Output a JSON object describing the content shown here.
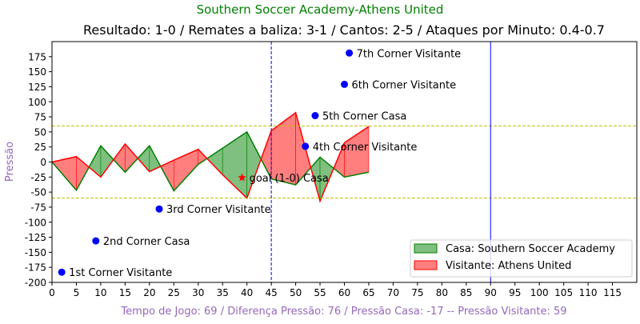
{
  "chart_data": {
    "type": "area",
    "title": "Southern Soccer Academy-Athens United",
    "subtitle": "Resultado: 1-0 / Remates a baliza: 3-1 / Cantos: 2-5 / Ataques por Minuto: 0.4-0.7",
    "xlabel": "Tempo de Jogo: 69 / Diferença Pressão: 76 / Pressão Casa: -17 -- Pressão Visitante: 59",
    "ylabel": "Pressão",
    "xlim": [
      0,
      120
    ],
    "ylim": [
      -200,
      200
    ],
    "xticks": [
      0,
      5,
      10,
      15,
      20,
      25,
      30,
      35,
      40,
      45,
      50,
      55,
      60,
      65,
      70,
      75,
      80,
      85,
      90,
      95,
      100,
      105,
      110,
      115
    ],
    "yticks": [
      -200,
      -175,
      -150,
      -125,
      -100,
      -75,
      -50,
      -25,
      0,
      25,
      50,
      75,
      100,
      125,
      150,
      175
    ],
    "series": [
      {
        "name": "Casa: Southern Soccer Academy",
        "color": "#008000",
        "fill": "#7fbf7f",
        "x": [
          0,
          5,
          10,
          15,
          20,
          25,
          30,
          35,
          40,
          45,
          50,
          55,
          60,
          65
        ],
        "values": [
          0,
          -47,
          27,
          -17,
          27,
          -48,
          -4,
          23,
          50,
          -28,
          -38,
          8,
          -25,
          -17
        ]
      },
      {
        "name": "Visitante: Athens United",
        "color": "#ff0000",
        "fill": "#ff7f7f",
        "x": [
          0,
          5,
          10,
          15,
          20,
          25,
          30,
          35,
          40,
          45,
          50,
          55,
          60,
          65
        ],
        "values": [
          0,
          9,
          -25,
          30,
          -16,
          3,
          21,
          -21,
          -60,
          52,
          82,
          -65,
          32,
          59
        ]
      }
    ],
    "hlines": [
      60,
      -60
    ],
    "vlines": [
      {
        "x": 45,
        "style": "dashed"
      },
      {
        "x": 90,
        "style": "solid"
      }
    ],
    "annotations": [
      {
        "x": 2,
        "y": -183,
        "label": "1st Corner Visitante",
        "marker": "dot"
      },
      {
        "x": 9,
        "y": -131,
        "label": "2nd Corner Casa",
        "marker": "dot"
      },
      {
        "x": 22,
        "y": -78,
        "label": "3rd Corner Visitante",
        "marker": "dot"
      },
      {
        "x": 52,
        "y": 26,
        "label": "4th Corner Visitante",
        "marker": "dot"
      },
      {
        "x": 54,
        "y": 77,
        "label": "5th Corner Casa",
        "marker": "dot"
      },
      {
        "x": 60,
        "y": 129,
        "label": "6th Corner Visitante",
        "marker": "dot"
      },
      {
        "x": 61,
        "y": 181,
        "label": "7th Corner Visitante",
        "marker": "dot"
      },
      {
        "x": 39,
        "y": -26,
        "label": "goal (1-0) Casa",
        "marker": "star"
      }
    ],
    "legend": "lower-right",
    "colors": {
      "title": "#008000",
      "ylabel": "#9467bd",
      "xlabel": "#9467bd",
      "hline": "#bfbf00",
      "vline": "#0000ff",
      "marker": "#0000ff",
      "goal": "#ff0000"
    }
  }
}
